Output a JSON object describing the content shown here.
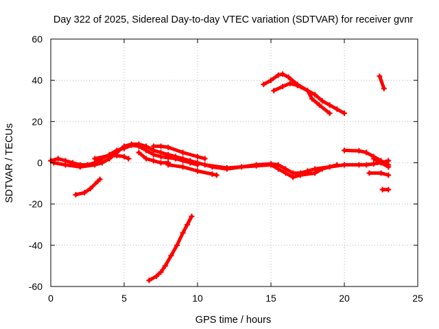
{
  "chart_data": {
    "type": "scatter",
    "title": "Day 322 of 2025, Sidereal Day-to-day VTEC variation (SDTVAR) for receiver gvnr",
    "xlabel": "GPS time / hours",
    "ylabel": "SDTVAR / TECUs",
    "xlim": [
      0,
      25
    ],
    "ylim": [
      -60,
      60
    ],
    "xticks": [
      0,
      5,
      10,
      15,
      20,
      25
    ],
    "yticks": [
      -60,
      -40,
      -20,
      0,
      20,
      40,
      60
    ],
    "xtick_labels": [
      "0",
      "5",
      "10",
      "15",
      "20",
      "25"
    ],
    "ytick_labels": [
      "-60",
      "-40",
      "-20",
      "0",
      "20",
      "40",
      "60"
    ],
    "grid": true,
    "marker_color": "#ff0000",
    "series": [
      {
        "name": "s1",
        "points": [
          [
            0,
            1
          ],
          [
            0.5,
            2
          ],
          [
            1,
            1
          ],
          [
            1.5,
            0
          ],
          [
            2,
            -1
          ],
          [
            2.5,
            -1
          ],
          [
            3,
            0
          ],
          [
            3.5,
            2
          ],
          [
            4,
            4
          ],
          [
            4.5,
            6
          ],
          [
            5,
            7
          ],
          [
            5.5,
            8.5
          ],
          [
            6,
            8
          ],
          [
            6.5,
            6
          ],
          [
            7,
            4
          ],
          [
            7.5,
            3
          ],
          [
            8,
            2.5
          ],
          [
            8.5,
            2
          ],
          [
            9,
            1
          ],
          [
            9.5,
            0
          ],
          [
            10,
            -1
          ]
        ]
      },
      {
        "name": "s2",
        "points": [
          [
            0.2,
            0
          ],
          [
            1,
            -1
          ],
          [
            2,
            -2
          ],
          [
            3,
            -1
          ],
          [
            3.5,
            0
          ],
          [
            4,
            2
          ],
          [
            4.5,
            5
          ],
          [
            5,
            8
          ],
          [
            5.5,
            9
          ],
          [
            6,
            9
          ],
          [
            6.5,
            8
          ],
          [
            7,
            6
          ],
          [
            7.5,
            5
          ],
          [
            8,
            4
          ],
          [
            8.5,
            3
          ],
          [
            9,
            2
          ],
          [
            9.5,
            1
          ],
          [
            10,
            0
          ]
        ]
      },
      {
        "name": "s3",
        "points": [
          [
            3,
            2
          ],
          [
            4,
            3.5
          ],
          [
            4.5,
            3.5
          ],
          [
            5,
            3
          ],
          [
            5.3,
            2
          ]
        ]
      },
      {
        "name": "s4",
        "points": [
          [
            6,
            5
          ],
          [
            6.5,
            2
          ],
          [
            7,
            1
          ],
          [
            7.5,
            0
          ],
          [
            8,
            0
          ]
        ]
      },
      {
        "name": "s5",
        "points": [
          [
            7,
            8
          ],
          [
            7.5,
            8
          ],
          [
            8,
            7.5
          ],
          [
            9,
            5
          ],
          [
            10,
            3
          ],
          [
            10.5,
            2
          ]
        ]
      },
      {
        "name": "s6",
        "points": [
          [
            8,
            -1
          ],
          [
            9,
            -2
          ],
          [
            10,
            -4
          ],
          [
            11,
            -5.5
          ],
          [
            11.3,
            -6
          ]
        ]
      },
      {
        "name": "s7",
        "points": [
          [
            10,
            0
          ],
          [
            11,
            -2
          ],
          [
            12,
            -3
          ],
          [
            13,
            -2
          ],
          [
            14,
            -1
          ],
          [
            15,
            -0.5
          ],
          [
            15.5,
            -1
          ],
          [
            16,
            -3
          ],
          [
            16.5,
            -5
          ],
          [
            17,
            -5
          ],
          [
            17.5,
            -4
          ],
          [
            18,
            -3
          ],
          [
            19,
            -2
          ],
          [
            20,
            -1
          ]
        ]
      },
      {
        "name": "s8",
        "points": [
          [
            10.5,
            -1
          ],
          [
            12,
            -2.5
          ],
          [
            14,
            -1.5
          ],
          [
            15,
            -1
          ],
          [
            15.5,
            -3
          ],
          [
            16,
            -5
          ],
          [
            16.5,
            -7
          ],
          [
            17,
            -6
          ],
          [
            18,
            -5
          ],
          [
            18.5,
            -3
          ],
          [
            19,
            -2
          ],
          [
            19.5,
            -1
          ]
        ]
      },
      {
        "name": "s9",
        "points": [
          [
            20,
            -1
          ],
          [
            21,
            -1
          ],
          [
            21.5,
            -1
          ],
          [
            22,
            -0.5
          ],
          [
            22.5,
            0
          ],
          [
            23,
            1
          ]
        ]
      },
      {
        "name": "s10",
        "points": [
          [
            20,
            6
          ],
          [
            21,
            5.8
          ],
          [
            21.5,
            5
          ],
          [
            22,
            3
          ],
          [
            22.5,
            1
          ],
          [
            23,
            -1
          ]
        ]
      },
      {
        "name": "s11",
        "points": [
          [
            22,
            2
          ],
          [
            22.5,
            0
          ],
          [
            23,
            -2
          ]
        ]
      },
      {
        "name": "s12",
        "points": [
          [
            21.7,
            -5
          ],
          [
            22.5,
            -5
          ],
          [
            23,
            -6
          ]
        ]
      },
      {
        "name": "s13",
        "points": [
          [
            14.5,
            38
          ],
          [
            15,
            40
          ],
          [
            15.5,
            42.5
          ],
          [
            15.8,
            43
          ],
          [
            16.2,
            41.5
          ],
          [
            16.8,
            38
          ],
          [
            17.5,
            35
          ],
          [
            18,
            33
          ],
          [
            18.5,
            30
          ],
          [
            19,
            28
          ],
          [
            19.5,
            26
          ],
          [
            20,
            24
          ]
        ]
      },
      {
        "name": "s14",
        "points": [
          [
            15.2,
            35
          ],
          [
            15.8,
            37
          ],
          [
            16.3,
            38.5
          ],
          [
            16.8,
            37.5
          ],
          [
            17.5,
            35
          ],
          [
            17.8,
            31
          ],
          [
            18.3,
            28
          ],
          [
            19,
            24
          ]
        ]
      },
      {
        "name": "s15",
        "points": [
          [
            22.4,
            42
          ],
          [
            22.7,
            36
          ]
        ]
      },
      {
        "name": "s16",
        "points": [
          [
            22.6,
            -13
          ],
          [
            23,
            -13
          ]
        ]
      },
      {
        "name": "s17",
        "points": [
          [
            1.7,
            -15.5
          ],
          [
            2.3,
            -14.5
          ],
          [
            2.7,
            -12.5
          ],
          [
            3.2,
            -9
          ],
          [
            3.35,
            -8
          ]
        ]
      },
      {
        "name": "s18",
        "points": [
          [
            6.7,
            -57
          ],
          [
            7.2,
            -55
          ],
          [
            7.5,
            -53
          ],
          [
            7.8,
            -50
          ],
          [
            8.2,
            -45
          ],
          [
            8.6,
            -40
          ],
          [
            9,
            -34
          ],
          [
            9.3,
            -30
          ],
          [
            9.6,
            -26
          ]
        ]
      }
    ]
  }
}
